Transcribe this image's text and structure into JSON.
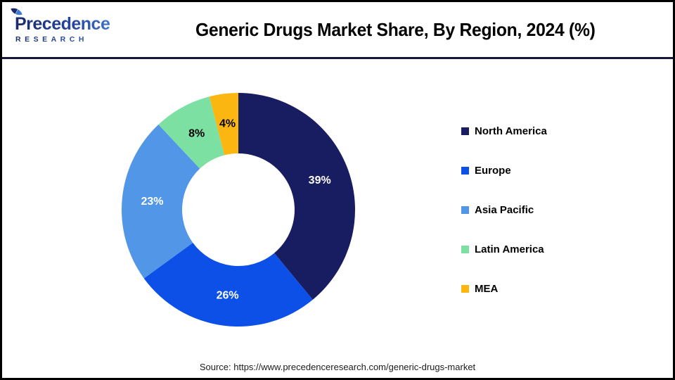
{
  "header": {
    "logo_line1": "Precedence",
    "logo_line2": "RESEARCH",
    "title": "Generic Drugs Market Share, By Region, 2024 (%)"
  },
  "chart_data": {
    "type": "pie",
    "subtype": "donut",
    "title": "Generic Drugs Market Share, By Region, 2024 (%)",
    "categories": [
      "North America",
      "Europe",
      "Asia Pacific",
      "Latin America",
      "MEA"
    ],
    "values": [
      39,
      26,
      23,
      8,
      4
    ],
    "data_labels": [
      "39%",
      "26%",
      "23%",
      "8%",
      "4%"
    ],
    "colors": [
      "#181C60",
      "#0C50E8",
      "#5296E8",
      "#7CE0A2",
      "#FCB612"
    ],
    "data_label_colors": [
      "#ffffff",
      "#ffffff",
      "#ffffff",
      "#000000",
      "#000000"
    ],
    "unit": "%",
    "start_angle_deg": 0,
    "direction": "clockwise",
    "donut_hole_ratio": 0.48,
    "legend_position": "right",
    "grid": false
  },
  "footer": {
    "source": "Source: https://www.precedenceresearch.com/generic-drugs-market"
  },
  "theme": {
    "divider_color": "#141739",
    "border_color": "#000000",
    "background": "#FFFFFF",
    "logo_navy": "#1B2A6B",
    "logo_blue": "#4A86D8"
  }
}
